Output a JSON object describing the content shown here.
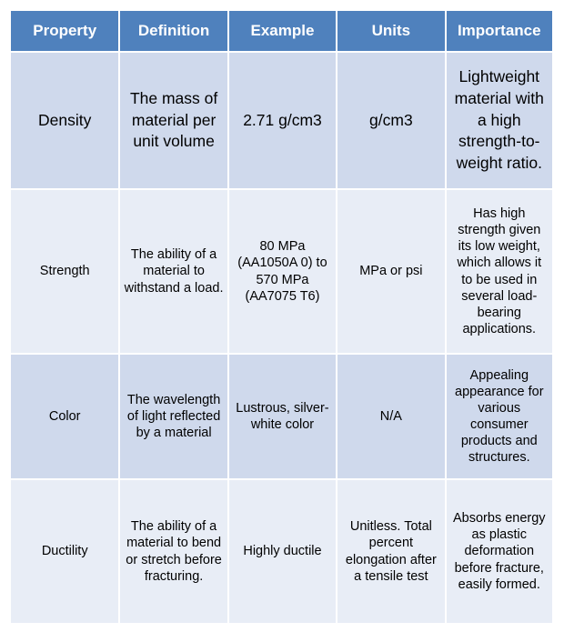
{
  "headers": [
    "Property",
    "Definition",
    "Example",
    "Units",
    "Importance"
  ],
  "rows": [
    [
      "Density",
      "The mass of material per unit volume",
      "2.71 g/cm3",
      "g/cm3",
      "Lightweight material with a high strength-to-weight ratio."
    ],
    [
      "Strength",
      "The ability of a material to withstand a load.",
      "80 MPa (AA1050A 0) to 570 MPa (AA7075 T6)",
      "MPa or psi",
      "Has high strength given its low weight, which allows it to be used in several load-bearing applications."
    ],
    [
      "Color",
      "The wavelength of light reflected by a material",
      "Lustrous, silver-white color",
      "N/A",
      "Appealing appearance for various consumer products and structures."
    ],
    [
      "Ductility",
      "The ability of a material to bend or stretch before fracturing.",
      "Highly ductile",
      "Unitless. Total percent elongation after a tensile test",
      "Absorbs energy as plastic deformation before fracture, easily formed."
    ]
  ],
  "colors": {
    "header": "#4f81bd",
    "row_dark": "#cfd9ec",
    "row_light": "#e8edf6"
  }
}
